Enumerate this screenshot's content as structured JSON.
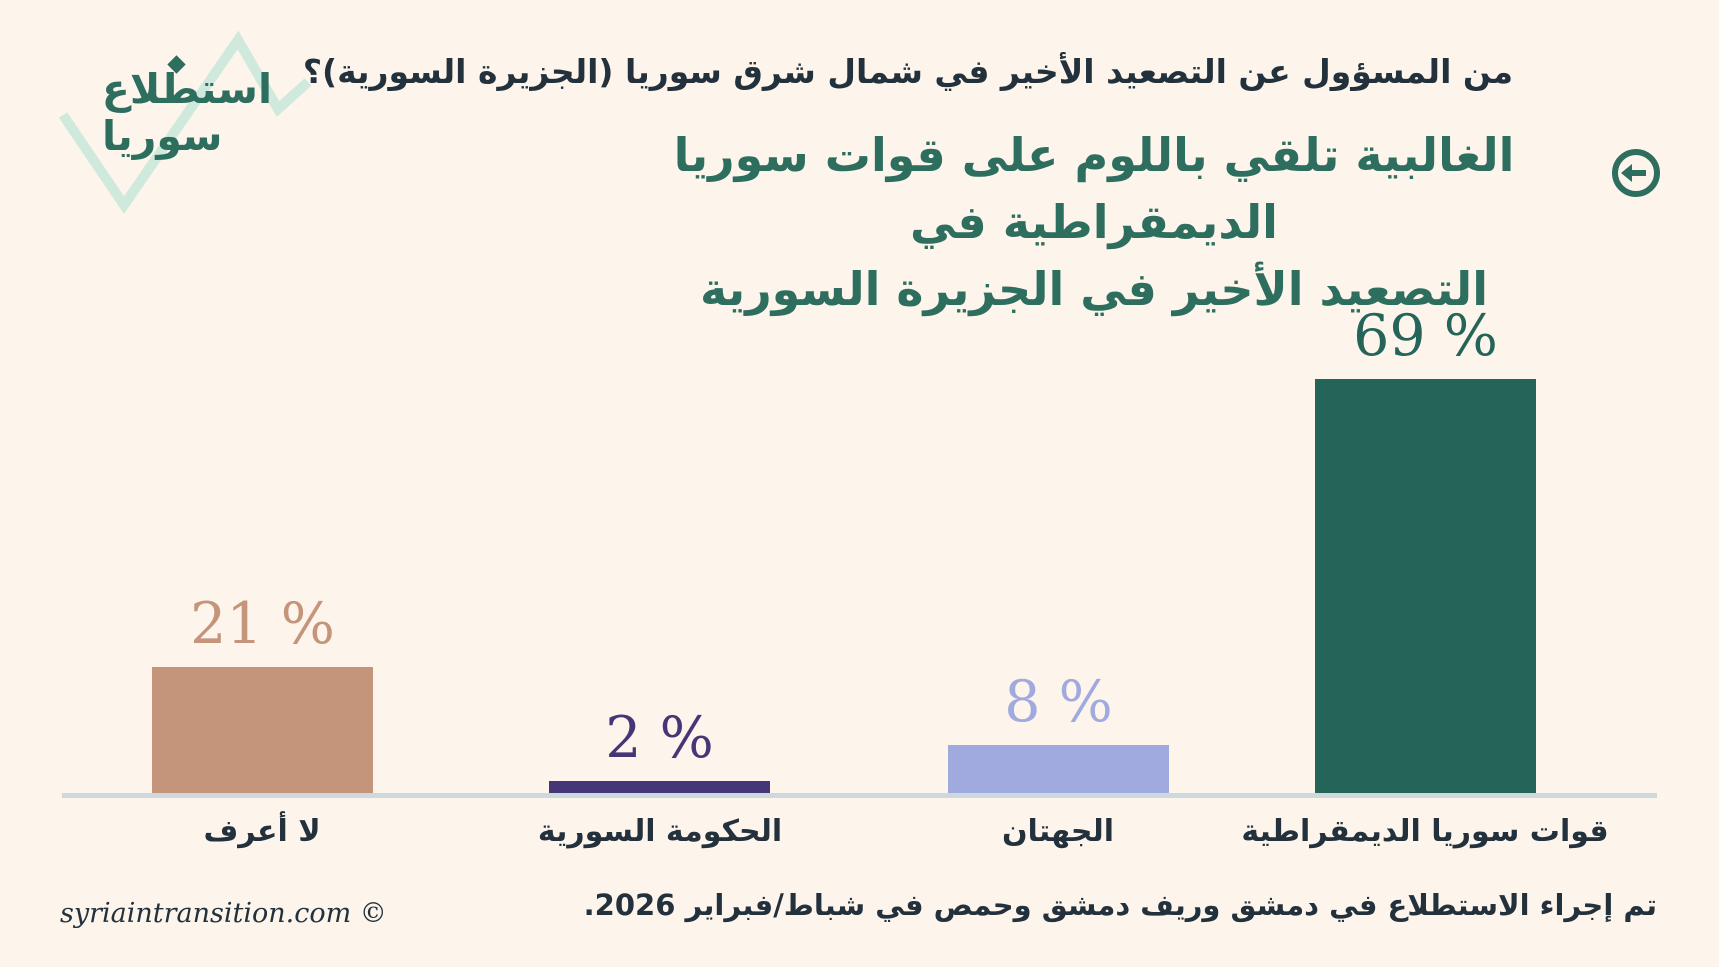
{
  "colors": {
    "background": "#fdf4ec",
    "accent_teal": "#2d6e5f",
    "dark_text": "#22313c",
    "mint_line": "#cfe9dc",
    "axis_line": "#cdd9dd"
  },
  "logo": {
    "wordmark_line1": "استطلاع",
    "wordmark_line2": "سوريا"
  },
  "header": {
    "question": "من المسؤول عن التصعيد الأخير في شمال شرق سوريا (الجزيرة السورية)؟",
    "headline_line1": "الغالبية تلقي باللوم على قوات سوريا الديمقراطية في",
    "headline_line2": "التصعيد الأخير في الجزيرة السورية"
  },
  "chart_data": {
    "type": "bar",
    "orientation": "vertical",
    "reading_direction": "rtl",
    "categories": [
      "قوات سوريا الديمقراطية",
      "الجهتان",
      "الحكومة السورية",
      "لا أعرف"
    ],
    "values": [
      69,
      8,
      2,
      21
    ],
    "value_labels": [
      "69 %",
      "8 %",
      "2 %",
      "21 %"
    ],
    "bar_colors": [
      "#256559",
      "#a0aade",
      "#443677",
      "#c4957a"
    ],
    "ylim": [
      0,
      75
    ],
    "grid": false,
    "legend": false,
    "xlabel": "",
    "ylabel": ""
  },
  "footer": {
    "credit": "syriaintransition.com ©",
    "methodology": "تم إجراء الاستطلاع في دمشق وريف دمشق وحمص في شباط/فبراير 2026."
  }
}
